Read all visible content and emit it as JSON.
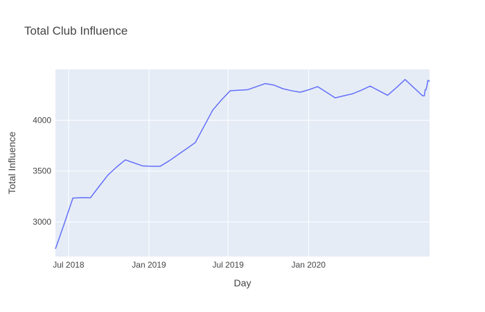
{
  "chart_data": {
    "type": "line",
    "title": "Total Club Influence",
    "xlabel": "Day",
    "ylabel": "Total Influence",
    "xlim": [
      "2018-06-01",
      "2020-10-04"
    ],
    "ylim": [
      2660,
      4500
    ],
    "x_ticks": [
      {
        "date": "2018-07-01",
        "label": "Jul 2018"
      },
      {
        "date": "2019-01-01",
        "label": "Jan 2019"
      },
      {
        "date": "2019-07-01",
        "label": "Jul 2019"
      },
      {
        "date": "2020-01-01",
        "label": "Jan 2020"
      }
    ],
    "y_ticks": [
      {
        "value": 3000,
        "label": "3000"
      },
      {
        "value": 3500,
        "label": "3500"
      },
      {
        "value": 4000,
        "label": "4000"
      }
    ],
    "grid": true,
    "legend": "none",
    "colors": {
      "line": "#636efa",
      "plot_bg": "#e5ecf6",
      "grid": "#ffffff",
      "text": "#444444"
    },
    "series": [
      {
        "x": [
          "2018-06-01",
          "2018-06-21",
          "2018-07-11",
          "2018-07-31",
          "2018-08-20",
          "2018-09-09",
          "2018-09-29",
          "2018-10-19",
          "2018-11-08",
          "2018-11-28",
          "2018-12-18",
          "2019-01-07",
          "2019-01-27",
          "2019-02-16",
          "2019-03-08",
          "2019-03-28",
          "2019-04-17",
          "2019-05-07",
          "2019-05-27",
          "2019-06-16",
          "2019-07-06",
          "2019-07-26",
          "2019-08-15",
          "2019-09-04",
          "2019-09-24",
          "2019-10-14",
          "2019-11-03",
          "2019-11-23",
          "2019-12-13",
          "2020-01-02",
          "2020-01-22",
          "2020-02-11",
          "2020-03-02",
          "2020-03-22",
          "2020-04-11",
          "2020-05-01",
          "2020-05-21",
          "2020-06-10",
          "2020-06-30",
          "2020-07-20",
          "2020-08-09",
          "2020-08-29",
          "2020-09-18",
          "2020-09-22",
          "2020-09-24",
          "2020-09-26",
          "2020-09-28",
          "2020-09-30",
          "2020-10-02",
          "2020-10-04"
        ],
        "y": [
          2735,
          2980,
          3235,
          3238,
          3237,
          3350,
          3460,
          3540,
          3610,
          3580,
          3550,
          3548,
          3548,
          3600,
          3660,
          3720,
          3780,
          3940,
          4100,
          4200,
          4290,
          4295,
          4300,
          4330,
          4360,
          4345,
          4310,
          4290,
          4275,
          4300,
          4330,
          4275,
          4220,
          4240,
          4260,
          4295,
          4335,
          4290,
          4245,
          4320,
          4400,
          4320,
          4240,
          4240,
          4300,
          4300,
          4340,
          4390,
          4390,
          4380
        ]
      }
    ]
  }
}
